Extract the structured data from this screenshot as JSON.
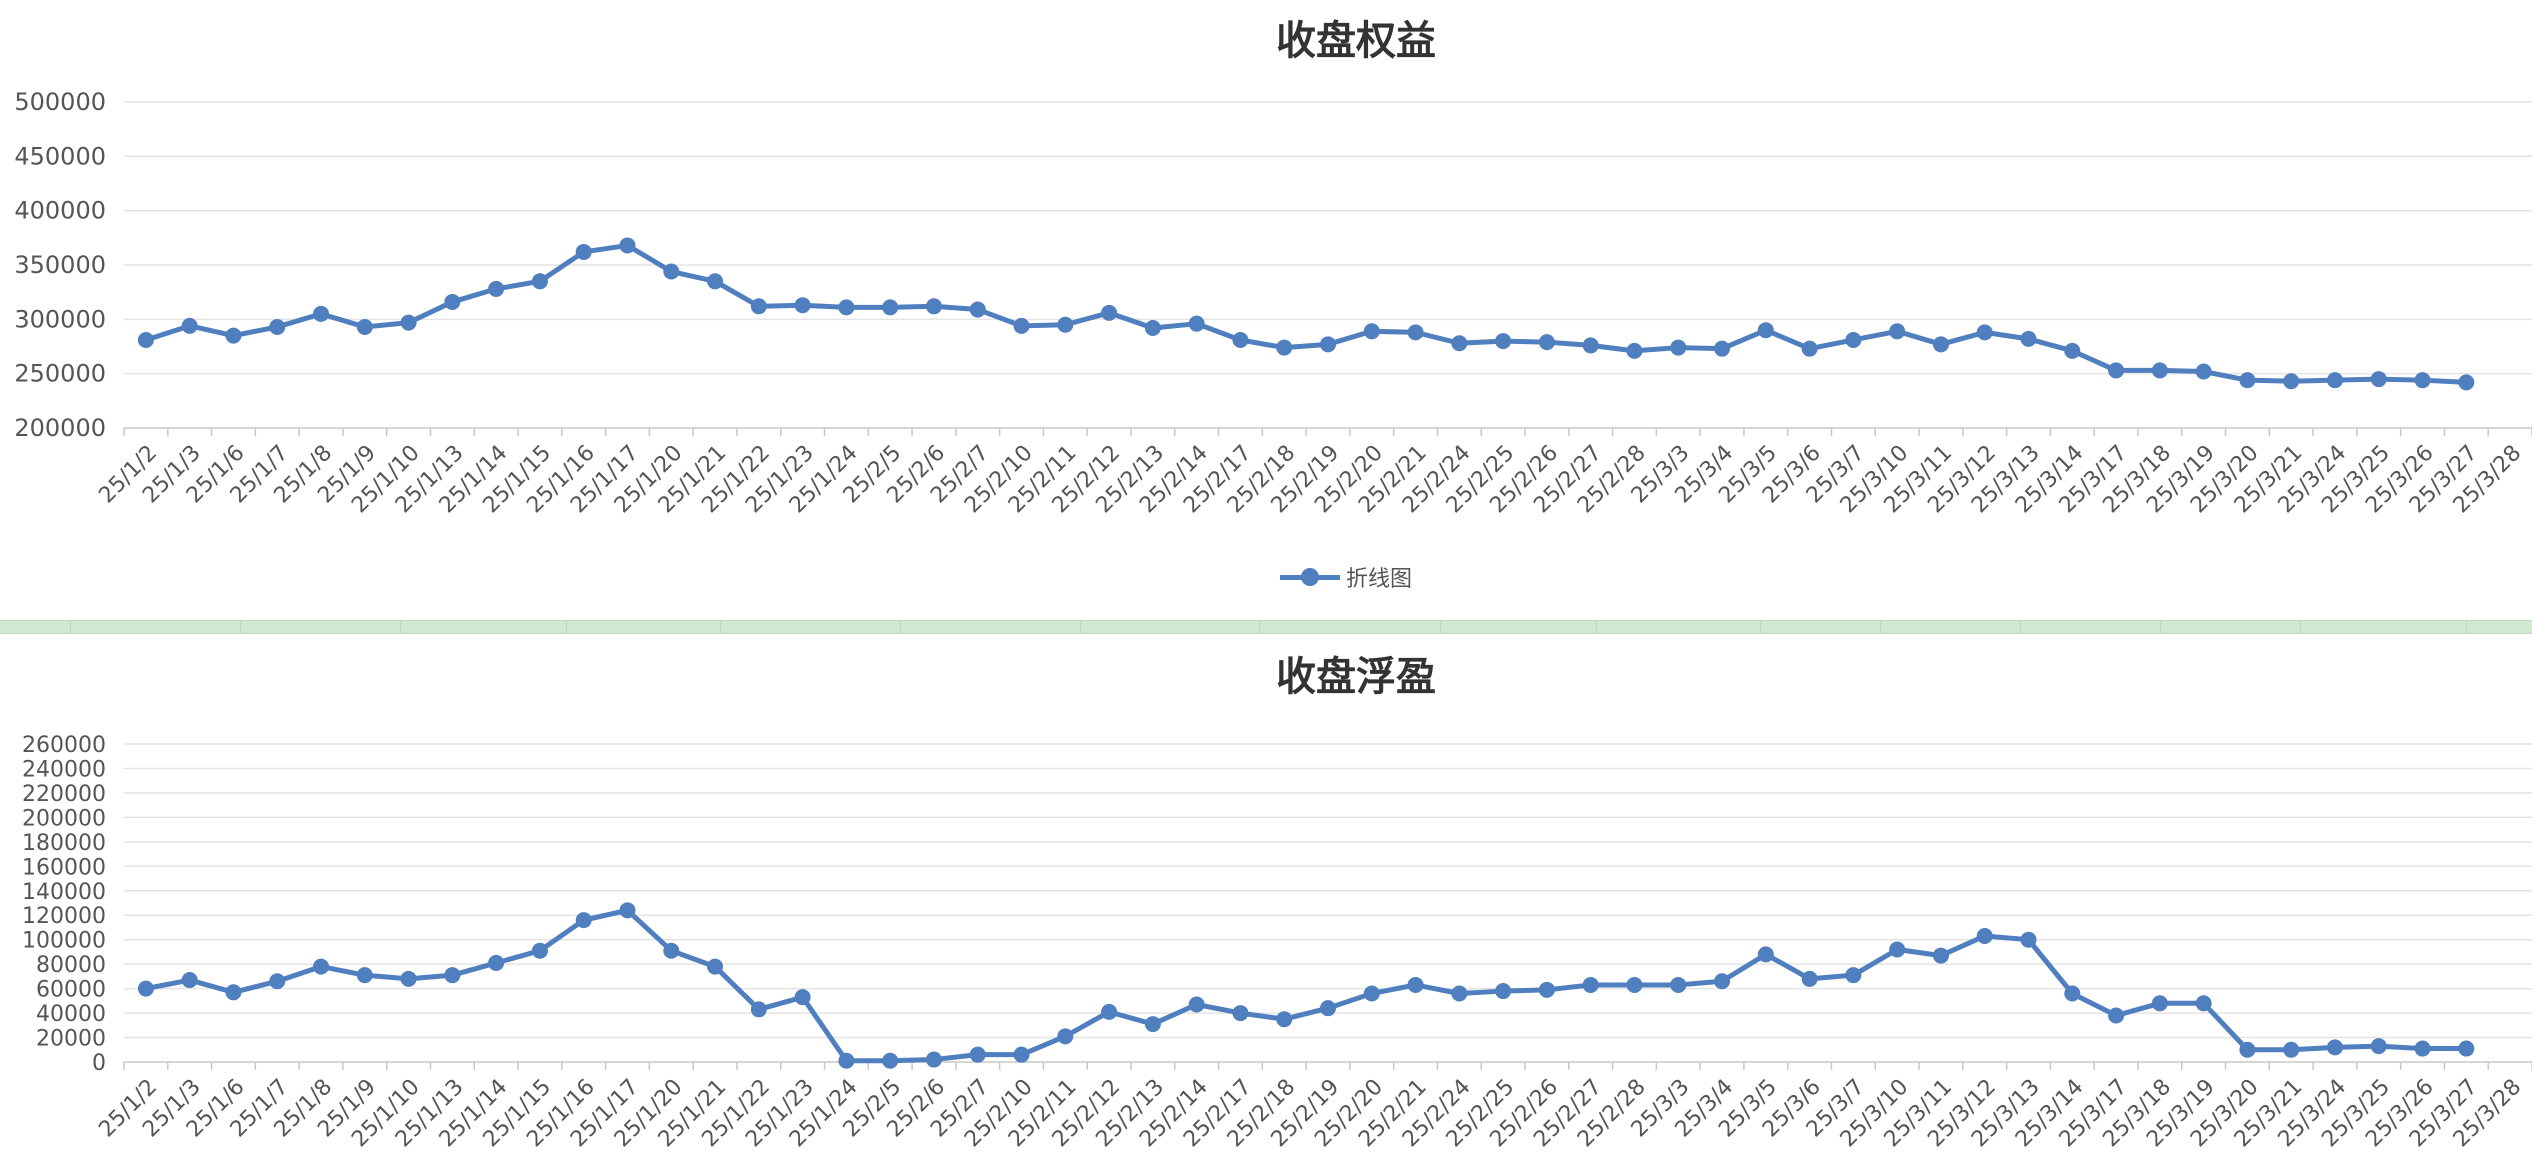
{
  "chart_data": [
    {
      "type": "line",
      "title": "收盘权益",
      "categories": [
        "25/1/2",
        "25/1/3",
        "25/1/6",
        "25/1/7",
        "25/1/8",
        "25/1/9",
        "25/1/10",
        "25/1/13",
        "25/1/14",
        "25/1/15",
        "25/1/16",
        "25/1/17",
        "25/1/20",
        "25/1/21",
        "25/1/22",
        "25/1/23",
        "25/1/24",
        "25/2/5",
        "25/2/6",
        "25/2/7",
        "25/2/10",
        "25/2/11",
        "25/2/12",
        "25/2/13",
        "25/2/14",
        "25/2/17",
        "25/2/18",
        "25/2/19",
        "25/2/20",
        "25/2/21",
        "25/2/24",
        "25/2/25",
        "25/2/26",
        "25/2/27",
        "25/2/28",
        "25/3/3",
        "25/3/4",
        "25/3/5",
        "25/3/6",
        "25/3/7",
        "25/3/10",
        "25/3/11",
        "25/3/12",
        "25/3/13",
        "25/3/14",
        "25/3/17",
        "25/3/18",
        "25/3/19",
        "25/3/20",
        "25/3/21",
        "25/3/24",
        "25/3/25",
        "25/3/26",
        "25/3/27",
        "25/3/28"
      ],
      "series": [
        {
          "name": "折线图",
          "values": [
            281000,
            294000,
            285000,
            293000,
            305000,
            293000,
            297000,
            316000,
            328000,
            335000,
            362000,
            368000,
            344000,
            335000,
            312000,
            313000,
            311000,
            311000,
            312000,
            309000,
            294000,
            295000,
            306000,
            292000,
            296000,
            281000,
            274000,
            277000,
            289000,
            288000,
            278000,
            280000,
            279000,
            276000,
            271000,
            274000,
            273000,
            290000,
            273000,
            281000,
            289000,
            277000,
            288000,
            282000,
            271000,
            253000,
            253000,
            252000,
            244000,
            243000,
            244000,
            245000,
            244000,
            242000,
            null
          ]
        }
      ],
      "ylim": [
        200000,
        500000
      ],
      "yticks": [
        "200000",
        "250000",
        "300000",
        "350000",
        "400000",
        "450000",
        "500000"
      ],
      "legend": "bottom-center",
      "color": "#4f7fbf",
      "grid": true
    },
    {
      "type": "line",
      "title": "收盘浮盈",
      "categories": [
        "25/1/2",
        "25/1/3",
        "25/1/6",
        "25/1/7",
        "25/1/8",
        "25/1/9",
        "25/1/10",
        "25/1/13",
        "25/1/14",
        "25/1/15",
        "25/1/16",
        "25/1/17",
        "25/1/20",
        "25/1/21",
        "25/1/22",
        "25/1/23",
        "25/1/24",
        "25/2/5",
        "25/2/6",
        "25/2/7",
        "25/2/10",
        "25/2/11",
        "25/2/12",
        "25/2/13",
        "25/2/14",
        "25/2/17",
        "25/2/18",
        "25/2/19",
        "25/2/20",
        "25/2/21",
        "25/2/24",
        "25/2/25",
        "25/2/26",
        "25/2/27",
        "25/2/28",
        "25/3/3",
        "25/3/4",
        "25/3/5",
        "25/3/6",
        "25/3/7",
        "25/3/10",
        "25/3/11",
        "25/3/12",
        "25/3/13",
        "25/3/14",
        "25/3/17",
        "25/3/18",
        "25/3/19",
        "25/3/20",
        "25/3/21",
        "25/3/24",
        "25/3/25",
        "25/3/26",
        "25/3/27",
        "25/3/28"
      ],
      "series": [
        {
          "values": [
            60000,
            67000,
            57000,
            66000,
            78000,
            71000,
            68000,
            71000,
            81000,
            91000,
            116000,
            124000,
            91000,
            78000,
            43000,
            53000,
            1000,
            1000,
            2000,
            6000,
            6000,
            21000,
            41000,
            31000,
            47000,
            40000,
            35000,
            44000,
            56000,
            63000,
            56000,
            58000,
            59000,
            63000,
            63000,
            63000,
            66000,
            88000,
            68000,
            71000,
            92000,
            87000,
            103000,
            100000,
            56000,
            38000,
            48000,
            48000,
            10000,
            10000,
            12000,
            13000,
            11000,
            11000,
            null
          ]
        }
      ],
      "ylim": [
        0,
        260000
      ],
      "yticks": [
        "0",
        "20000",
        "40000",
        "60000",
        "80000",
        "100000",
        "120000",
        "140000",
        "160000",
        "180000",
        "200000",
        "220000",
        "240000",
        "260000"
      ],
      "color": "#4f7fbf",
      "grid": true
    }
  ]
}
